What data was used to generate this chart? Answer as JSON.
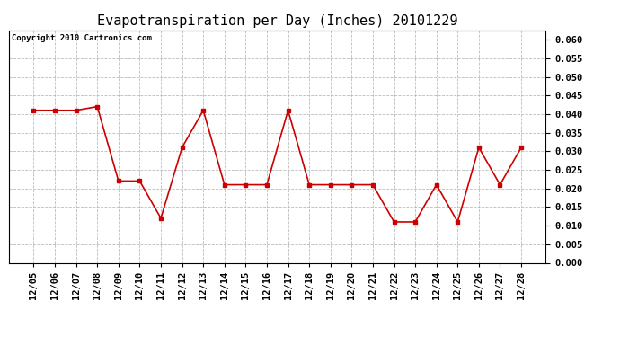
{
  "title": "Evapotranspiration per Day (Inches) 20101229",
  "copyright": "Copyright 2010 Cartronics.com",
  "x_labels": [
    "12/05",
    "12/06",
    "12/07",
    "12/08",
    "12/09",
    "12/10",
    "12/11",
    "12/12",
    "12/13",
    "12/14",
    "12/15",
    "12/16",
    "12/17",
    "12/18",
    "12/19",
    "12/20",
    "12/21",
    "12/22",
    "12/23",
    "12/24",
    "12/25",
    "12/26",
    "12/27",
    "12/28"
  ],
  "y_values": [
    0.041,
    0.041,
    0.041,
    0.042,
    0.022,
    0.022,
    0.012,
    0.031,
    0.041,
    0.021,
    0.021,
    0.021,
    0.041,
    0.021,
    0.021,
    0.021,
    0.021,
    0.011,
    0.011,
    0.021,
    0.011,
    0.031,
    0.021,
    0.031
  ],
  "line_color": "#cc0000",
  "marker": "s",
  "marker_size": 3,
  "ylim": [
    0.0,
    0.0625
  ],
  "yticks": [
    0.0,
    0.005,
    0.01,
    0.015,
    0.02,
    0.025,
    0.03,
    0.035,
    0.04,
    0.045,
    0.05,
    0.055,
    0.06
  ],
  "background_color": "#ffffff",
  "plot_bg_color": "#ffffff",
  "grid_color": "#bbbbbb",
  "title_fontsize": 11,
  "copyright_fontsize": 6.5,
  "tick_fontsize": 7.5
}
